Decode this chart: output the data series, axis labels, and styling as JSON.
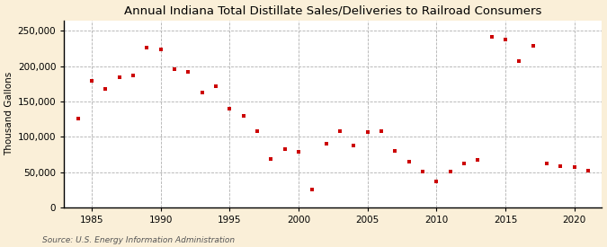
{
  "title": "Annual Indiana Total Distillate Sales/Deliveries to Railroad Consumers",
  "ylabel": "Thousand Gallons",
  "source": "Source: U.S. Energy Information Administration",
  "fig_background_color": "#faefd8",
  "plot_background_color": "#ffffff",
  "marker_color": "#cc0000",
  "marker": "s",
  "marker_size": 3.5,
  "xlim": [
    1983,
    2022
  ],
  "ylim": [
    0,
    265000
  ],
  "yticks": [
    0,
    50000,
    100000,
    150000,
    200000,
    250000
  ],
  "xticks": [
    1985,
    1990,
    1995,
    2000,
    2005,
    2010,
    2015,
    2020
  ],
  "years": [
    1984,
    1985,
    1986,
    1987,
    1988,
    1989,
    1990,
    1991,
    1992,
    1993,
    1994,
    1995,
    1996,
    1997,
    1998,
    1999,
    2000,
    2001,
    2002,
    2003,
    2004,
    2005,
    2006,
    2007,
    2008,
    2009,
    2010,
    2011,
    2012,
    2013,
    2014,
    2015,
    2016,
    2017,
    2018,
    2019,
    2020,
    2021
  ],
  "values": [
    126000,
    179000,
    168000,
    184000,
    187000,
    226000,
    224000,
    196000,
    192000,
    163000,
    172000,
    140000,
    130000,
    108000,
    69000,
    83000,
    79000,
    25000,
    90000,
    108000,
    88000,
    107000,
    108000,
    80000,
    65000,
    51000,
    37000,
    51000,
    62000,
    67000,
    242000,
    238000,
    207000,
    229000,
    63000,
    58000,
    57000,
    52000
  ],
  "title_fontsize": 9.5,
  "ylabel_fontsize": 7.5,
  "tick_fontsize": 7.5,
  "source_fontsize": 6.5
}
